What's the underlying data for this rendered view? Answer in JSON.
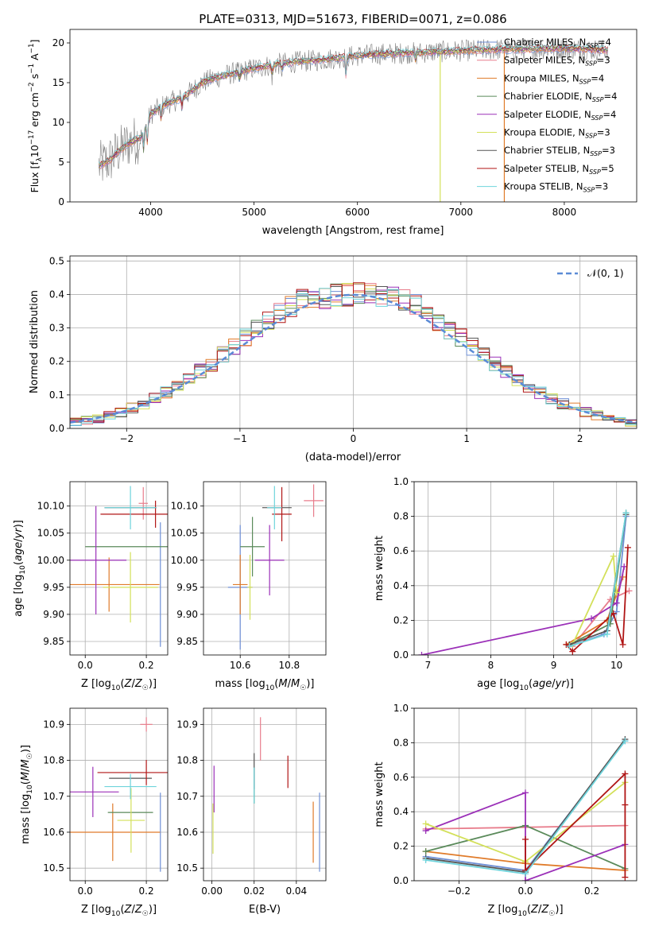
{
  "figure_title": "PLATE=0313, MJD=51673, FIBERID=0071, z=0.086",
  "colors": {
    "Chabrier MILES": "#6e8fd6",
    "Salpeter MILES": "#e87d8c",
    "Kroupa MILES": "#e07b2a",
    "Chabrier ELODIE": "#5a8a5a",
    "Salpeter ELODIE": "#9b30b8",
    "Kroupa ELODIE": "#d3e05a",
    "Chabrier STELIB": "#555555",
    "Salpeter STELIB": "#b01515",
    "Kroupa STELIB": "#6fd4dc",
    "data": "#808080",
    "normal": "#5b8bd6"
  },
  "chart_data": [
    {
      "id": "spectrum",
      "type": "line",
      "title": "PLATE=0313, MJD=51673, FIBERID=0071, z=0.086",
      "xlabel": "wavelength [Angstrom, rest frame]",
      "ylabel": "Flux [f_λ 10^-17 erg cm^-2 s^-1 A^-1]",
      "xlim": [
        3220,
        8700
      ],
      "ylim": [
        0,
        21.7
      ],
      "xticks": [
        4000,
        5000,
        6000,
        7000,
        8000
      ],
      "yticks": [
        0,
        5,
        10,
        15,
        20
      ],
      "legend_position": "upper right",
      "continuum": {
        "x": [
          3500,
          3600,
          3700,
          3800,
          3900,
          4000,
          4100,
          4200,
          4300,
          4400,
          4500,
          4600,
          4800,
          5000,
          5200,
          5400,
          5600,
          5800,
          6000,
          6200,
          6400,
          6600,
          6800,
          7000,
          7200,
          7400,
          7600,
          7800,
          8000,
          8200,
          8400
        ],
        "y": [
          4.5,
          5.2,
          6.5,
          7.5,
          8.0,
          11.0,
          12.0,
          12.6,
          13.0,
          14.0,
          15.0,
          15.5,
          16.2,
          16.8,
          17.3,
          17.6,
          17.8,
          18.1,
          18.4,
          18.6,
          18.7,
          18.8,
          18.9,
          19.0,
          19.1,
          19.2,
          19.2,
          19.3,
          19.3,
          19.2,
          19.1
        ]
      },
      "data_spikes_x": [
        6800,
        7420
      ],
      "series": [
        {
          "name": "Chabrier MILES, N_SSP=4",
          "label_main": "Chabrier MILES, N",
          "label_sub": "SSP",
          "label_tail": "=4",
          "color": "#6e8fd6"
        },
        {
          "name": "Salpeter MILES, N_SSP=3",
          "label_main": "Salpeter MILES, N",
          "label_sub": "SSP",
          "label_tail": "=3",
          "color": "#e87d8c"
        },
        {
          "name": "Kroupa MILES, N_SSP=4",
          "label_main": "Kroupa MILES, N",
          "label_sub": "SSP",
          "label_tail": "=4",
          "color": "#e07b2a"
        },
        {
          "name": "Chabrier ELODIE, N_SSP=4",
          "label_main": "Chabrier ELODIE, N",
          "label_sub": "SSP",
          "label_tail": "=4",
          "color": "#5a8a5a"
        },
        {
          "name": "Salpeter ELODIE, N_SSP=4",
          "label_main": "Salpeter ELODIE, N",
          "label_sub": "SSP",
          "label_tail": "=4",
          "color": "#9b30b8"
        },
        {
          "name": "Kroupa ELODIE, N_SSP=3",
          "label_main": "Kroupa ELODIE, N",
          "label_sub": "SSP",
          "label_tail": "=3",
          "color": "#d3e05a"
        },
        {
          "name": "Chabrier STELIB, N_SSP=3",
          "label_main": "Chabrier STELIB, N",
          "label_sub": "SSP",
          "label_tail": "=3",
          "color": "#555555"
        },
        {
          "name": "Salpeter STELIB, N_SSP=5",
          "label_main": "Salpeter STELIB, N",
          "label_sub": "SSP",
          "label_tail": "=5",
          "color": "#b01515"
        },
        {
          "name": "Kroupa STELIB, N_SSP=3",
          "label_main": "Kroupa STELIB, N",
          "label_sub": "SSP",
          "label_tail": "=3",
          "color": "#6fd4dc"
        }
      ]
    },
    {
      "id": "residuals",
      "type": "step-histogram",
      "xlabel": "(data-model)/error",
      "ylabel": "Normed distribution",
      "xlim": [
        -2.5,
        2.5
      ],
      "ylim": [
        0,
        0.515
      ],
      "xticks": [
        -2,
        -1,
        0,
        1,
        2
      ],
      "yticks": [
        0.0,
        0.1,
        0.2,
        0.3,
        0.4,
        0.5
      ],
      "grid": true,
      "legend_position": "upper right",
      "reference_curve": {
        "name": "𝒩(0, 1)",
        "mean": 0,
        "sigma": 1
      },
      "bins": {
        "start": -2.5,
        "width": 0.1,
        "count": 50
      },
      "gaussian_bin_values": [
        0.018,
        0.024,
        0.03,
        0.039,
        0.049,
        0.061,
        0.074,
        0.09,
        0.107,
        0.126,
        0.147,
        0.17,
        0.194,
        0.219,
        0.245,
        0.271,
        0.297,
        0.322,
        0.345,
        0.366,
        0.384,
        0.397,
        0.393,
        0.401,
        0.399,
        0.399,
        0.401,
        0.393,
        0.397,
        0.384,
        0.366,
        0.345,
        0.322,
        0.297,
        0.271,
        0.245,
        0.219,
        0.194,
        0.17,
        0.147,
        0.126,
        0.107,
        0.09,
        0.074,
        0.061,
        0.049,
        0.039,
        0.03,
        0.024,
        0.018
      ]
    },
    {
      "id": "age-vs-Z",
      "type": "errorbar",
      "xlabel": "Z [log10(Z/Z☉)]",
      "ylabel": "age [log10(age/yr)]",
      "xlim": [
        -0.05,
        0.27
      ],
      "ylim": [
        9.825,
        10.145
      ],
      "xticks": [
        0.0,
        0.2
      ],
      "yticks": [
        9.85,
        9.9,
        9.95,
        10.0,
        10.05,
        10.1
      ],
      "grid": true,
      "points": [
        {
          "s": "Chabrier MILES",
          "x": 0.246,
          "xerr": 0.0,
          "y": 9.955,
          "yerr": 0.115
        },
        {
          "s": "Salpeter MILES",
          "x": 0.19,
          "xerr": 0.015,
          "y": 10.105,
          "yerr": 0.03
        },
        {
          "s": "Kroupa MILES",
          "x": 0.078,
          "xerr": 0.165,
          "y": 9.955,
          "yerr": 0.05
        },
        {
          "s": "Chabrier ELODIE",
          "x": 0.148,
          "xerr": 0.148,
          "y": 10.025,
          "yerr": 0.0
        },
        {
          "s": "Salpeter ELODIE",
          "x": 0.035,
          "xerr": 0.1,
          "y": 10.0,
          "yerr": 0.1
        },
        {
          "s": "Kroupa ELODIE",
          "x": 0.148,
          "xerr": 0.09,
          "y": 9.95,
          "yerr": 0.065
        },
        {
          "s": "Chabrier STELIB",
          "x": 0.148,
          "xerr": 0.085,
          "y": 10.097,
          "yerr": 0.0
        },
        {
          "s": "Salpeter STELIB",
          "x": 0.23,
          "xerr": 0.18,
          "y": 10.085,
          "yerr": 0.025
        },
        {
          "s": "Kroupa STELIB",
          "x": 0.148,
          "xerr": 0.085,
          "y": 10.097,
          "yerr": 0.04
        }
      ]
    },
    {
      "id": "age-vs-mass",
      "type": "errorbar",
      "xlabel": "mass [log10(M/M☉)]",
      "ylabel": "",
      "xlim": [
        10.45,
        10.95
      ],
      "ylim": [
        9.825,
        10.145
      ],
      "xticks": [
        10.6,
        10.8
      ],
      "yticks": [
        9.85,
        9.9,
        9.95,
        10.0,
        10.05,
        10.1
      ],
      "grid": true,
      "points": [
        {
          "s": "Chabrier MILES",
          "x": 10.6,
          "xerr": 0.05,
          "y": 9.95,
          "yerr": 0.115
        },
        {
          "s": "Salpeter MILES",
          "x": 10.9,
          "xerr": 0.04,
          "y": 10.11,
          "yerr": 0.03
        },
        {
          "s": "Kroupa MILES",
          "x": 10.6,
          "xerr": 0.03,
          "y": 9.955,
          "yerr": 0.055
        },
        {
          "s": "Chabrier ELODIE",
          "x": 10.65,
          "xerr": 0.05,
          "y": 10.025,
          "yerr": 0.055
        },
        {
          "s": "Salpeter ELODIE",
          "x": 10.72,
          "xerr": 0.06,
          "y": 10.0,
          "yerr": 0.065
        },
        {
          "s": "Kroupa ELODIE",
          "x": 10.64,
          "xerr": 0.01,
          "y": 9.95,
          "yerr": 0.06
        },
        {
          "s": "Chabrier STELIB",
          "x": 10.75,
          "xerr": 0.06,
          "y": 10.097,
          "yerr": 0.0
        },
        {
          "s": "Salpeter STELIB",
          "x": 10.77,
          "xerr": 0.04,
          "y": 10.085,
          "yerr": 0.05
        },
        {
          "s": "Kroupa STELIB",
          "x": 10.74,
          "xerr": 0.03,
          "y": 10.097,
          "yerr": 0.04
        }
      ]
    },
    {
      "id": "weight-vs-age",
      "type": "line",
      "xlabel": "age [log10(age/yr)]",
      "ylabel": "mass weight",
      "xlim": [
        6.78,
        10.32
      ],
      "ylim": [
        0,
        1.0
      ],
      "xticks": [
        7,
        8,
        9,
        10
      ],
      "yticks": [
        0.0,
        0.2,
        0.4,
        0.6,
        0.8,
        1.0
      ],
      "grid": true,
      "series": [
        {
          "s": "Chabrier MILES",
          "x": [
            9.25,
            9.8,
            10.0,
            10.15
          ],
          "y": [
            0.05,
            0.12,
            0.25,
            0.8
          ]
        },
        {
          "s": "Salpeter MILES",
          "x": [
            9.3,
            9.9,
            10.2
          ],
          "y": [
            0.05,
            0.32,
            0.37
          ]
        },
        {
          "s": "Kroupa MILES",
          "x": [
            9.2,
            9.85,
            10.1
          ],
          "y": [
            0.06,
            0.2,
            0.45
          ]
        },
        {
          "s": "Chabrier ELODIE",
          "x": [
            9.25,
            9.9,
            10.15
          ],
          "y": [
            0.06,
            0.18,
            0.82
          ]
        },
        {
          "s": "Salpeter ELODIE",
          "x": [
            6.9,
            9.6,
            10.0,
            10.12
          ],
          "y": [
            0.0,
            0.21,
            0.3,
            0.51
          ]
        },
        {
          "s": "Kroupa ELODIE",
          "x": [
            9.3,
            9.95,
            10.0
          ],
          "y": [
            0.06,
            0.57,
            0.36
          ]
        },
        {
          "s": "Chabrier STELIB",
          "x": [
            9.25,
            9.85,
            10.15
          ],
          "y": [
            0.06,
            0.14,
            0.81
          ]
        },
        {
          "s": "Salpeter STELIB",
          "x": [
            9.2,
            9.3,
            9.95,
            10.1,
            10.18
          ],
          "y": [
            0.06,
            0.02,
            0.24,
            0.06,
            0.62
          ]
        },
        {
          "s": "Kroupa STELIB",
          "x": [
            9.25,
            9.85,
            10.15
          ],
          "y": [
            0.05,
            0.12,
            0.82
          ]
        }
      ]
    },
    {
      "id": "mass-vs-Z",
      "type": "errorbar",
      "xlabel": "Z [log10(Z/Z☉)]",
      "ylabel": "mass [log10(M/M☉)]",
      "xlim": [
        -0.05,
        0.27
      ],
      "ylim": [
        10.465,
        10.945
      ],
      "xticks": [
        0.0,
        0.2
      ],
      "yticks": [
        10.5,
        10.6,
        10.7,
        10.8,
        10.9
      ],
      "grid": true,
      "points": [
        {
          "s": "Chabrier MILES",
          "x": 0.246,
          "xerr": 0.0,
          "y": 10.6,
          "yerr": 0.11
        },
        {
          "s": "Salpeter MILES",
          "x": 0.2,
          "xerr": 0.02,
          "y": 10.9,
          "yerr": 0.02
        },
        {
          "s": "Kroupa MILES",
          "x": 0.09,
          "xerr": 0.155,
          "y": 10.6,
          "yerr": 0.08
        },
        {
          "s": "Chabrier ELODIE",
          "x": 0.148,
          "xerr": 0.074,
          "y": 10.655,
          "yerr": 0.0
        },
        {
          "s": "Salpeter ELODIE",
          "x": 0.025,
          "xerr": 0.085,
          "y": 10.712,
          "yerr": 0.07
        },
        {
          "s": "Kroupa ELODIE",
          "x": 0.15,
          "xerr": 0.045,
          "y": 10.633,
          "yerr": 0.09
        },
        {
          "s": "Chabrier STELIB",
          "x": 0.148,
          "xerr": 0.07,
          "y": 10.75,
          "yerr": 0.0
        },
        {
          "s": "Salpeter STELIB",
          "x": 0.2,
          "xerr": 0.16,
          "y": 10.766,
          "yerr": 0.035
        },
        {
          "s": "Kroupa STELIB",
          "x": 0.148,
          "xerr": 0.085,
          "y": 10.727,
          "yerr": 0.035
        }
      ]
    },
    {
      "id": "mass-vs-EBV",
      "type": "errorbar",
      "xlabel": "E(B-V)",
      "ylabel": "",
      "xlim": [
        -0.004,
        0.054
      ],
      "ylim": [
        10.465,
        10.945
      ],
      "xticks": [
        0.0,
        0.02,
        0.04
      ],
      "yticks": [
        10.5,
        10.6,
        10.7,
        10.8,
        10.9
      ],
      "grid": true,
      "points": [
        {
          "s": "Chabrier MILES",
          "x": 0.051,
          "xerr": 0.0,
          "y": 10.6,
          "yerr": 0.11
        },
        {
          "s": "Salpeter MILES",
          "x": 0.023,
          "xerr": 0.0,
          "y": 10.86,
          "yerr": 0.06
        },
        {
          "s": "Kroupa MILES",
          "x": 0.048,
          "xerr": 0.0,
          "y": 10.6,
          "yerr": 0.085
        },
        {
          "s": "Chabrier ELODIE",
          "x": 0.02,
          "xerr": 0.0,
          "y": 10.73,
          "yerr": 0.05
        },
        {
          "s": "Salpeter ELODIE",
          "x": 0.001,
          "xerr": 0.0,
          "y": 10.72,
          "yerr": 0.065
        },
        {
          "s": "Kroupa ELODIE",
          "x": 0.0005,
          "xerr": 0.0,
          "y": 10.61,
          "yerr": 0.07
        },
        {
          "s": "Chabrier STELIB",
          "x": 0.02,
          "xerr": 0.0,
          "y": 10.77,
          "yerr": 0.05
        },
        {
          "s": "Salpeter STELIB",
          "x": 0.036,
          "xerr": 0.0,
          "y": 10.768,
          "yerr": 0.045
        },
        {
          "s": "Kroupa STELIB",
          "x": 0.02,
          "xerr": 0.0,
          "y": 10.73,
          "yerr": 0.05
        }
      ]
    },
    {
      "id": "weight-vs-Z",
      "type": "line",
      "xlabel": "Z [log10(Z/Z☉)]",
      "ylabel": "mass weight",
      "xlim": [
        -0.335,
        0.335
      ],
      "ylim": [
        0,
        1.0
      ],
      "xticks": [
        -0.2,
        0.0,
        0.2
      ],
      "yticks": [
        0.0,
        0.2,
        0.4,
        0.6,
        0.8,
        1.0
      ],
      "grid": true,
      "series": [
        {
          "s": "Chabrier MILES",
          "x": [
            -0.3,
            0.0,
            0.3
          ],
          "y": [
            0.14,
            0.06,
            0.81
          ]
        },
        {
          "s": "Salpeter MILES",
          "x": [
            -0.3,
            0.3
          ],
          "y": [
            0.3,
            0.32
          ]
        },
        {
          "s": "Kroupa MILES",
          "x": [
            -0.3,
            0.0,
            0.3
          ],
          "y": [
            0.17,
            0.1,
            0.06
          ]
        },
        {
          "s": "Chabrier ELODIE",
          "x": [
            -0.3,
            0.0,
            0.3
          ],
          "y": [
            0.17,
            0.32,
            0.07
          ]
        },
        {
          "s": "Salpeter ELODIE",
          "x": [
            -0.3,
            0.0,
            0.0,
            0.3
          ],
          "y": [
            0.29,
            0.51,
            0.0,
            0.21
          ]
        },
        {
          "s": "Kroupa ELODIE",
          "x": [
            -0.3,
            0.0,
            0.3
          ],
          "y": [
            0.33,
            0.11,
            0.57
          ]
        },
        {
          "s": "Chabrier STELIB",
          "x": [
            -0.3,
            0.0,
            0.3
          ],
          "y": [
            0.13,
            0.05,
            0.82
          ]
        },
        {
          "s": "Salpeter STELIB",
          "x": [
            0.0,
            0.0,
            0.3,
            0.3,
            0.3
          ],
          "y": [
            0.24,
            0.06,
            0.62,
            0.02,
            0.44
          ]
        },
        {
          "s": "Kroupa STELIB",
          "x": [
            -0.3,
            0.0,
            0.3
          ],
          "y": [
            0.12,
            0.04,
            0.81
          ]
        }
      ]
    }
  ]
}
